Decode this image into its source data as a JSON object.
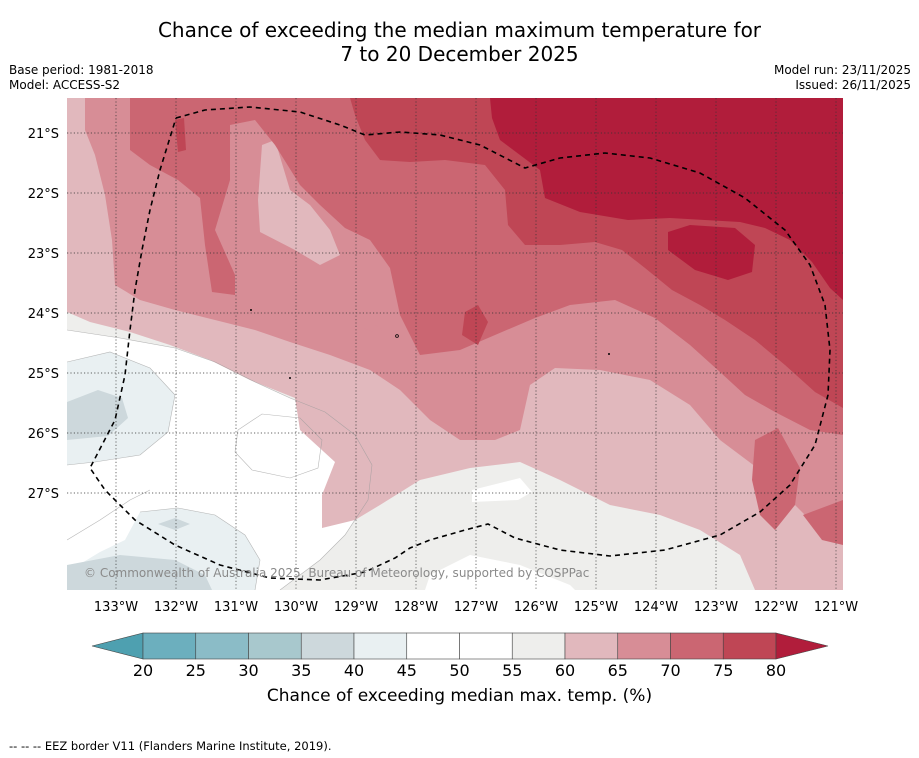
{
  "title": {
    "line1": "Chance of exceeding the median maximum temperature for",
    "line2": "7 to 20 December 2025"
  },
  "meta_left": {
    "base_period": "Base period: 1981-2018",
    "model": "Model: ACCESS-S2"
  },
  "meta_right": {
    "model_run": "Model run: 23/11/2025",
    "issued": "Issued: 26/11/2025"
  },
  "map": {
    "copyright": "© Commonwealth of Australia 2025, Bureau of Meteorology, supported by COSPPac",
    "lat_labels": [
      "21°S",
      "22°S",
      "23°S",
      "24°S",
      "25°S",
      "26°S",
      "27°S"
    ],
    "lon_labels": [
      "133°W",
      "132°W",
      "131°W",
      "130°W",
      "129°W",
      "128°W",
      "127°W",
      "126°W",
      "125°W",
      "124°W",
      "123°W",
      "122°W",
      "121°W"
    ]
  },
  "colorbar": {
    "ticks": [
      "20",
      "25",
      "30",
      "35",
      "40",
      "45",
      "50",
      "55",
      "60",
      "65",
      "70",
      "75",
      "80"
    ],
    "colors": {
      "below20": "#4ea0b0",
      "c20_25": "#6cafbe",
      "c25_30": "#8bbcc7",
      "c30_35": "#a8c8cd",
      "c35_40": "#cdd8dc",
      "c40_45": "#e9f0f2",
      "c45_50": "#ffffff",
      "c50_55": "#ffffff",
      "c55_60": "#eeeeec",
      "c60_65": "#e1b8bd",
      "c65_70": "#d78d96",
      "c70_75": "#cb6672",
      "c75_80": "#bf4655",
      "above80": "#b11d3b"
    },
    "label": "Chance of exceeding median max. temp. (%)"
  },
  "footnote": "--  --  -- EEZ border V11 (Flanders Marine Institute, 2019)."
}
